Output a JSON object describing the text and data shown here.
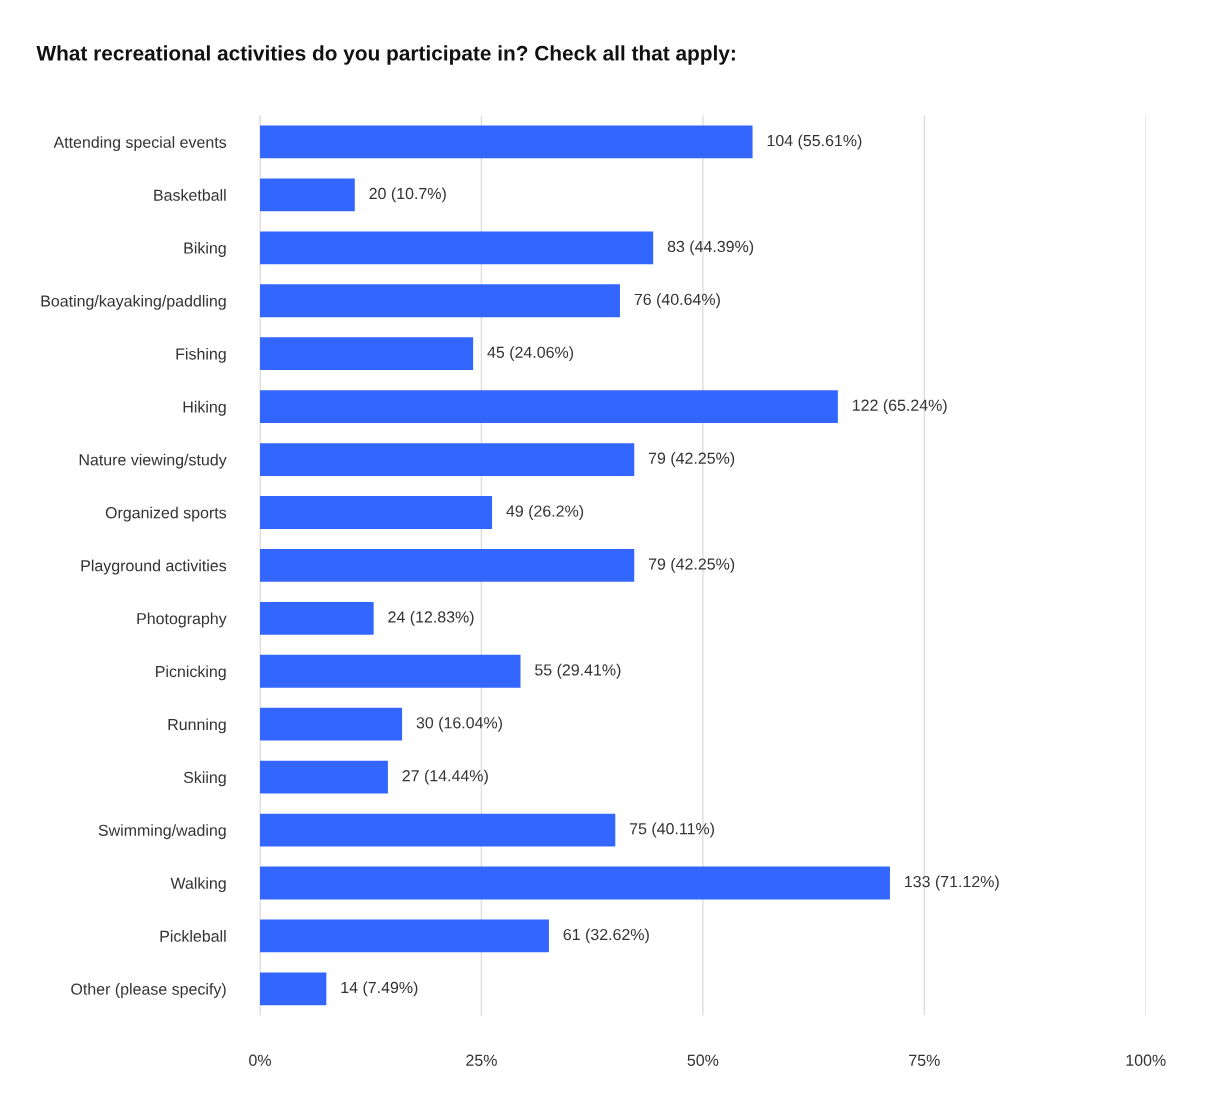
{
  "chart_data": {
    "type": "bar",
    "orientation": "horizontal",
    "title": "What recreational activities do you participate in? Check all that apply:",
    "categories": [
      "Attending special events",
      "Basketball",
      "Biking",
      "Boating/kayaking/paddling",
      "Fishing",
      "Hiking",
      "Nature viewing/study",
      "Organized sports",
      "Playground activities",
      "Photography",
      "Picnicking",
      "Running",
      "Skiing",
      "Swimming/wading",
      "Walking",
      "Pickleball",
      "Other (please specify)"
    ],
    "values": [
      55.61,
      10.7,
      44.39,
      40.64,
      24.06,
      65.24,
      42.25,
      26.2,
      42.25,
      12.83,
      29.41,
      16.04,
      14.44,
      40.11,
      71.12,
      32.62,
      7.49
    ],
    "value_labels": [
      "104 (55.61%)",
      "20 (10.7%)",
      "83 (44.39%)",
      "76 (40.64%)",
      "45 (24.06%)",
      "122 (65.24%)",
      "79 (42.25%)",
      "49 (26.2%)",
      "79 (42.25%)",
      "24 (12.83%)",
      "55 (29.41%)",
      "30 (16.04%)",
      "27 (14.44%)",
      "75 (40.11%)",
      "133 (71.12%)",
      "61 (32.62%)",
      "14 (7.49%)"
    ],
    "color": "#3366ff",
    "xlim": [
      0,
      100
    ],
    "xticks": [
      {
        "value": 0,
        "label": "0%"
      },
      {
        "value": 25,
        "label": "25%"
      },
      {
        "value": 50,
        "label": "50%"
      },
      {
        "value": 75,
        "label": "75%"
      },
      {
        "value": 100,
        "label": "100%"
      }
    ],
    "grid": "x",
    "legend": false
  }
}
